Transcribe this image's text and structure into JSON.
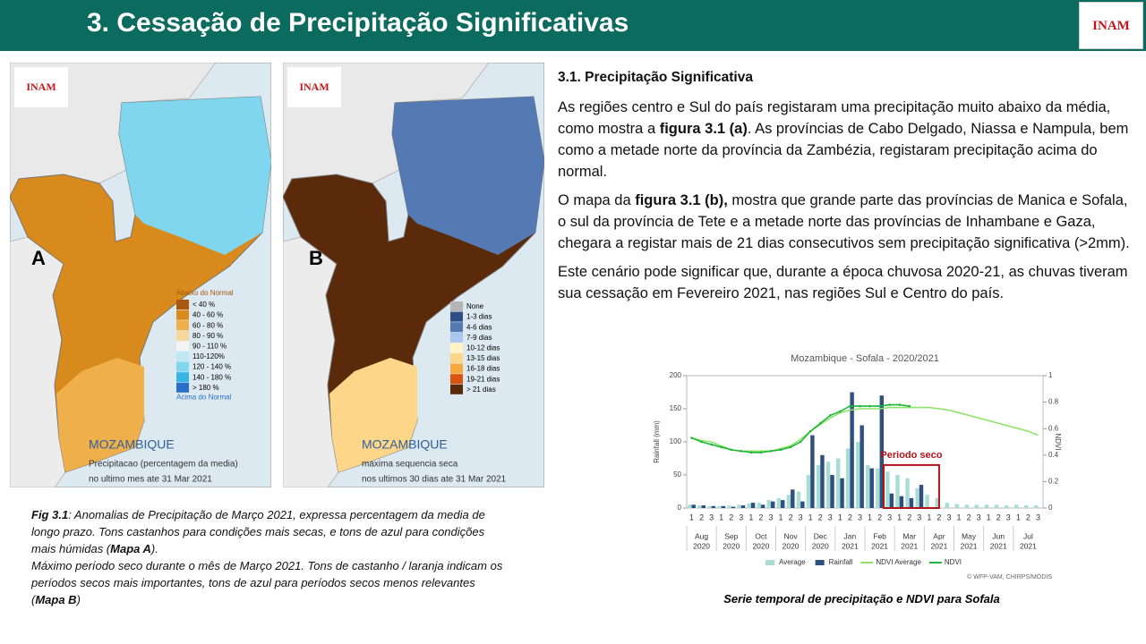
{
  "header": {
    "title": "3. Cessação de Precipitação Significativas",
    "logo": "INAM"
  },
  "maps": [
    {
      "letter": "A",
      "logo": "INAM",
      "legend_title": "Abaixo do Normal",
      "legend_footer": "Acima do Normal",
      "legend": [
        {
          "label": "< 40 %",
          "color": "#a8590f"
        },
        {
          "label": "40 - 60 %",
          "color": "#d98a1c"
        },
        {
          "label": "60 - 80 %",
          "color": "#efb04c"
        },
        {
          "label": "80 - 90 %",
          "color": "#f8d79a"
        },
        {
          "label": "90 - 110 %",
          "color": "#f4f4f0"
        },
        {
          "label": "110-120%",
          "color": "#bfeaf5"
        },
        {
          "label": "120 - 140 %",
          "color": "#7fd6ee"
        },
        {
          "label": "140 - 180 %",
          "color": "#36b7e3"
        },
        {
          "label": "> 180 %",
          "color": "#2a6fc9"
        }
      ],
      "country": "MOZAMBIQUE",
      "caption": [
        "Precipitacao (percentagem da media)",
        "no ultimo mes ate 31 Mar 2021"
      ]
    },
    {
      "letter": "B",
      "logo": "INAM",
      "legend": [
        {
          "label": "None",
          "color": "#b5b5b5"
        },
        {
          "label": "1-3 dias",
          "color": "#2d4f86"
        },
        {
          "label": "4-6 dias",
          "color": "#5579b3"
        },
        {
          "label": "7-9 dias",
          "color": "#abc6ef"
        },
        {
          "label": "10-12 dias",
          "color": "#fff4c2"
        },
        {
          "label": "13-15 dias",
          "color": "#fdd68a"
        },
        {
          "label": "16-18 dias",
          "color": "#f7a93c"
        },
        {
          "label": "19-21 dias",
          "color": "#d9550f"
        },
        {
          "label": "> 21 dias",
          "color": "#5b2a0b"
        }
      ],
      "country": "MOZAMBIQUE",
      "caption": [
        "maxima sequencia seca",
        "nos ultimos 30 dias ate 31 Mar 2021"
      ]
    }
  ],
  "fig_caption": {
    "p1": [
      "Fig 3.1",
      ": Anomalias de Precipitação de Março 2021, expressa percentagem da media de longo prazo. Tons castanhos para condições mais secas, e tons de azul para  condições mais húmidas (",
      "Mapa A",
      ")."
    ],
    "p2": [
      " Máximo período seco durante  o mês de Março 2021. Tons de castanho / laranja indicam os períodos secos mais importantes, tons de azul para períodos secos menos relevantes (",
      "Mapa B",
      ")"
    ]
  },
  "section": {
    "heading": "3.1.  Precipitação Significativa",
    "p1": [
      "As regiões centro e Sul do país registaram uma precipitação muito abaixo da média, como mostra a ",
      "figura 3.1 (a)",
      ". As províncias de Cabo Delgado, Niassa e Nampula, bem como a metade norte da província da Zambézia, registaram precipitação acima do normal."
    ],
    "p2": [
      "O mapa da ",
      "figura 3.1 (b),",
      " mostra que grande parte das províncias de Manica e Sofala, o sul da província de Tete e  a metade norte das províncias de Inhambane e Gaza, chegara a registar mais de 21 dias consecutivos sem precipitação significativa (>2mm)."
    ],
    "p3": [
      "Este cenário pode significar que, durante a época chuvosa 2020-21, as chuvas tiveram sua cessação em Fevereiro 2021, nas regiões Sul e Centro do país."
    ]
  },
  "chart_data": {
    "type": "combo",
    "title": "Mozambique - Sofala - 2020/2021",
    "y_label": "Rainfall (mm)",
    "y2_label": "NDVI",
    "source": "© WFP-VAM, CHIRPS/MODIS",
    "annotation": "Periodo seco",
    "categories": [
      "1",
      "2",
      "3",
      "1",
      "2",
      "3",
      "1",
      "2",
      "3",
      "1",
      "2",
      "3",
      "1",
      "2",
      "3",
      "1",
      "2",
      "3",
      "1",
      "2",
      "3",
      "1",
      "2",
      "3",
      "1",
      "2",
      "3",
      "1",
      "2",
      "3",
      "1",
      "2",
      "3",
      "1",
      "2",
      "3"
    ],
    "months": [
      {
        "month": "Aug",
        "year": "2020"
      },
      {
        "month": "Sep",
        "year": "2020"
      },
      {
        "month": "Oct",
        "year": "2020"
      },
      {
        "month": "Nov",
        "year": "2020"
      },
      {
        "month": "Dec",
        "year": "2020"
      },
      {
        "month": "Jan",
        "year": "2021"
      },
      {
        "month": "Feb",
        "year": "2021"
      },
      {
        "month": "Mar",
        "year": "2021"
      },
      {
        "month": "Apr",
        "year": "2021"
      },
      {
        "month": "May",
        "year": "2021"
      },
      {
        "month": "Jun",
        "year": "2021"
      },
      {
        "month": "Jul",
        "year": "2021"
      }
    ],
    "ylim": [
      0,
      200
    ],
    "yticks": [
      0,
      50,
      100,
      150,
      200
    ],
    "y2lim": [
      0,
      1
    ],
    "y2ticks": [
      0,
      0.2,
      0.4,
      0.6,
      0.8,
      1
    ],
    "grid": false,
    "series": [
      {
        "name": "Average",
        "kind": "bar",
        "color": "#a8ddd5",
        "values": [
          5,
          4,
          3,
          3,
          4,
          5,
          7,
          8,
          12,
          15,
          20,
          25,
          50,
          65,
          70,
          75,
          90,
          100,
          65,
          60,
          55,
          50,
          45,
          30,
          20,
          15,
          8,
          6,
          5,
          5,
          5,
          5,
          4,
          5,
          4,
          4
        ]
      },
      {
        "name": "Rainfall",
        "kind": "bar",
        "color": "#2f4f7f",
        "values": [
          5,
          4,
          3,
          3,
          2,
          4,
          8,
          5,
          10,
          12,
          28,
          10,
          110,
          80,
          50,
          45,
          175,
          125,
          60,
          170,
          22,
          18,
          15,
          35,
          null,
          null,
          null,
          null,
          null,
          null,
          null,
          null,
          null,
          null,
          null,
          null
        ]
      },
      {
        "name": "NDVI Average",
        "kind": "line",
        "axis": "y2",
        "color": "#8fe36a",
        "values": [
          0.53,
          0.51,
          0.5,
          0.47,
          0.44,
          0.43,
          0.43,
          0.43,
          0.43,
          0.45,
          0.47,
          0.52,
          0.58,
          0.63,
          0.68,
          0.72,
          0.74,
          0.75,
          0.75,
          0.75,
          0.76,
          0.76,
          0.76,
          0.76,
          0.76,
          0.75,
          0.74,
          0.72,
          0.7,
          0.68,
          0.66,
          0.64,
          0.62,
          0.6,
          0.58,
          0.55
        ]
      },
      {
        "name": "NDVI",
        "kind": "line",
        "axis": "y2",
        "color": "#1fb53a",
        "values": [
          0.53,
          0.5,
          0.48,
          0.46,
          0.44,
          0.43,
          0.42,
          0.42,
          0.43,
          0.44,
          0.46,
          0.5,
          0.58,
          0.64,
          0.7,
          0.73,
          0.77,
          0.77,
          0.77,
          0.77,
          0.78,
          0.78,
          0.77,
          null,
          null,
          null,
          null,
          null,
          null,
          null,
          null,
          null,
          null,
          null,
          null,
          null
        ]
      }
    ]
  },
  "chart_caption": "Serie temporal de precipitação e NDVI para Sofala"
}
